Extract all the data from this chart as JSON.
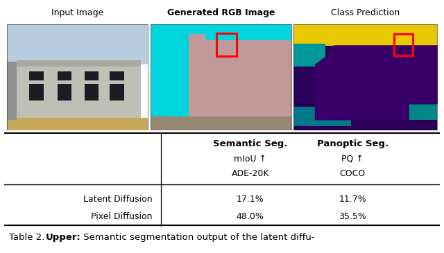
{
  "title_texts": [
    "Input Image",
    "Generated RGB Image",
    "Class Prediction"
  ],
  "title_bold": [
    false,
    true,
    false
  ],
  "table_header_col1": "Semantic Seg.",
  "table_header_col2": "Panoptic Seg.",
  "table_subrow1_col1": "mIoU ↑",
  "table_subrow1_col2": "PQ ↑",
  "table_subrow2_col1": "ADE-20K",
  "table_subrow2_col2": "COCO",
  "table_rows": [
    [
      "Latent Diffusion",
      "17.1%",
      "11.7%"
    ],
    [
      "Pixel Diffusion",
      "48.0%",
      "35.5%"
    ]
  ],
  "caption_normal": "Table 2. ",
  "caption_bold": "Upper:",
  "caption_rest": " Semantic segmentation output of the latent diffu-",
  "bg_color": "#ffffff",
  "figure_width": 6.4,
  "figure_height": 3.65,
  "red_box_color": "#ff0000",
  "panel1_colors": {
    "sky": "#b8cce0",
    "building": "#c0bfb5",
    "building_top": "#a8a89e",
    "ground": "#c8a85a",
    "window": "#1c1c24",
    "scaffolding": "#909090"
  },
  "panel2_colors": {
    "cyan_bg": "#00d4dc",
    "pink_building": "#c09898",
    "ground": "#968870",
    "step_gray": "#b0b0a0"
  },
  "panel3_colors": {
    "purple_bg": "#2a0058",
    "yellow_sky": "#e8c800",
    "teal_left": "#009898",
    "teal_bottom": "#007888",
    "teal_right": "#008888",
    "dark_purple": "#380068"
  }
}
